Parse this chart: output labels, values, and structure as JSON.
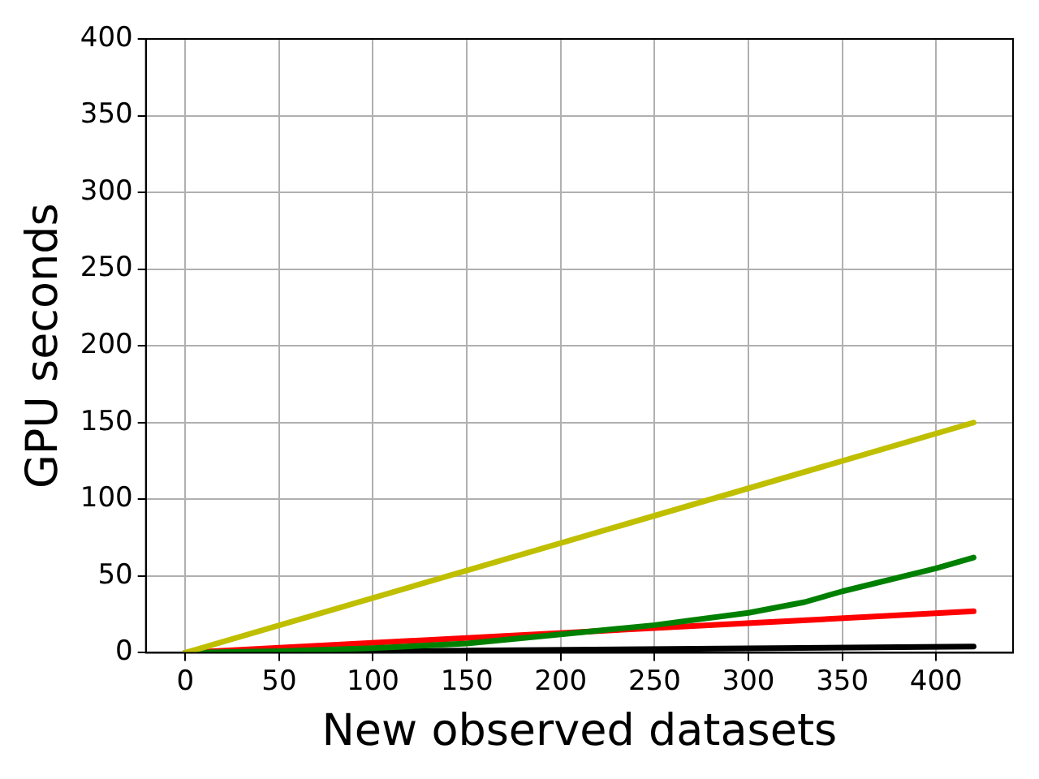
{
  "chart_data": {
    "type": "line",
    "xlabel": "New observed datasets",
    "ylabel": "GPU seconds",
    "xlim": [
      -21,
      441
    ],
    "ylim": [
      0,
      400
    ],
    "xticks": [
      0,
      50,
      100,
      150,
      200,
      250,
      300,
      350,
      400
    ],
    "yticks": [
      0,
      50,
      100,
      150,
      200,
      250,
      300,
      350,
      400
    ],
    "grid": true,
    "legend": false,
    "series": [
      {
        "color": "#bfbf00",
        "x": [
          0,
          420
        ],
        "values": [
          0,
          150
        ]
      },
      {
        "color": "#008000",
        "x": [
          0,
          50,
          100,
          150,
          200,
          250,
          300,
          330,
          350,
          400,
          420
        ],
        "values": [
          0,
          1,
          3,
          6,
          12,
          18,
          26,
          33,
          40,
          55,
          62
        ]
      },
      {
        "color": "#ff0000",
        "x": [
          0,
          420
        ],
        "values": [
          0,
          27
        ]
      },
      {
        "color": "#000000",
        "x": [
          0,
          420
        ],
        "values": [
          0,
          4
        ]
      }
    ]
  }
}
